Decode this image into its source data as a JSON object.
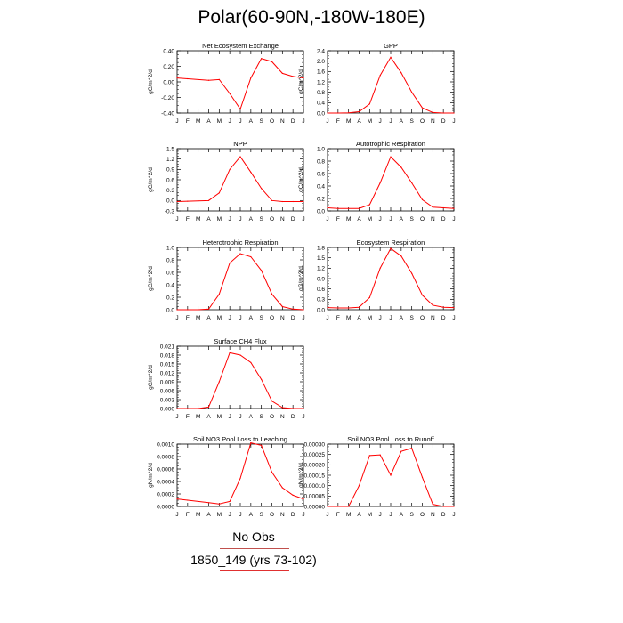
{
  "page": {
    "title": "Polar(60-90N,-180W-180E)",
    "footer_obs": "No Obs",
    "footer_run": "1850_149 (yrs 73-102)",
    "line_color": "#ff0000",
    "axis_color": "#000000",
    "obs_rule_color": "#c0504d",
    "run_rule_color": "#e03030"
  },
  "chart_data": [
    {
      "type": "line",
      "title": "Net Ecosystem Exchange",
      "ylabel": "gC/m^2/d",
      "categories": [
        "J",
        "F",
        "M",
        "A",
        "M",
        "J",
        "J",
        "A",
        "S",
        "O",
        "N",
        "D",
        "J"
      ],
      "ylim": [
        -0.4,
        0.4
      ],
      "yticks": [
        -0.4,
        -0.2,
        0.0,
        0.2,
        0.4
      ],
      "ytick_labels": [
        "-0.40",
        "-0.20",
        "0.00",
        "0.20",
        "0.40"
      ],
      "series": [
        {
          "values": [
            0.05,
            0.04,
            0.03,
            0.02,
            0.03,
            -0.15,
            -0.35,
            0.05,
            0.3,
            0.26,
            0.11,
            0.07,
            0.05
          ]
        }
      ]
    },
    {
      "type": "line",
      "title": "GPP",
      "ylabel": "gC/m^2/d",
      "categories": [
        "J",
        "F",
        "M",
        "A",
        "M",
        "J",
        "J",
        "A",
        "S",
        "O",
        "N",
        "D",
        "J"
      ],
      "ylim": [
        0,
        2.4
      ],
      "yticks": [
        0,
        0.4,
        0.8,
        1.2,
        1.6,
        2.0,
        2.4
      ],
      "ytick_labels": [
        "0.0",
        "0.4",
        "0.8",
        "1.2",
        "1.6",
        "2.0",
        "2.4"
      ],
      "series": [
        {
          "values": [
            0.0,
            0.0,
            0.01,
            0.05,
            0.35,
            1.45,
            2.15,
            1.55,
            0.8,
            0.2,
            0.02,
            0.0,
            0.0
          ]
        }
      ]
    },
    {
      "type": "line",
      "title": "NPP",
      "ylabel": "gC/m^2/d",
      "categories": [
        "J",
        "F",
        "M",
        "A",
        "M",
        "J",
        "J",
        "A",
        "S",
        "O",
        "N",
        "D",
        "J"
      ],
      "ylim": [
        -0.3,
        1.5
      ],
      "yticks": [
        -0.3,
        0.0,
        0.3,
        0.6,
        0.9,
        1.2,
        1.5
      ],
      "ytick_labels": [
        "-0.3",
        "0.0",
        "0.3",
        "0.6",
        "0.9",
        "1.2",
        "1.5"
      ],
      "series": [
        {
          "values": [
            -0.03,
            -0.02,
            -0.01,
            0.0,
            0.22,
            0.9,
            1.27,
            0.82,
            0.35,
            0.0,
            -0.03,
            -0.03,
            -0.03
          ]
        }
      ]
    },
    {
      "type": "line",
      "title": "Autotrophic Respiration",
      "ylabel": "gC/m^2/d",
      "categories": [
        "J",
        "F",
        "M",
        "A",
        "M",
        "J",
        "J",
        "A",
        "S",
        "O",
        "N",
        "D",
        "J"
      ],
      "ylim": [
        0,
        1.0
      ],
      "yticks": [
        0,
        0.2,
        0.4,
        0.6,
        0.8,
        1.0
      ],
      "ytick_labels": [
        "0.0",
        "0.2",
        "0.4",
        "0.6",
        "0.8",
        "1.0"
      ],
      "series": [
        {
          "values": [
            0.05,
            0.04,
            0.04,
            0.04,
            0.1,
            0.45,
            0.87,
            0.7,
            0.45,
            0.18,
            0.06,
            0.05,
            0.04
          ]
        }
      ]
    },
    {
      "type": "line",
      "title": "Heterotrophic Respiration",
      "ylabel": "gC/m^2/d",
      "categories": [
        "J",
        "F",
        "M",
        "A",
        "M",
        "J",
        "J",
        "A",
        "S",
        "O",
        "N",
        "D",
        "J"
      ],
      "ylim": [
        0,
        1.0
      ],
      "yticks": [
        0,
        0.2,
        0.4,
        0.6,
        0.8,
        1.0
      ],
      "ytick_labels": [
        "0.0",
        "0.2",
        "0.4",
        "0.6",
        "0.8",
        "1.0"
      ],
      "series": [
        {
          "values": [
            0.0,
            0.0,
            0.0,
            0.01,
            0.25,
            0.75,
            0.9,
            0.85,
            0.63,
            0.25,
            0.05,
            0.01,
            0.0
          ]
        }
      ]
    },
    {
      "type": "line",
      "title": "Ecosystem Respiration",
      "ylabel": "gC/m^2/d",
      "categories": [
        "J",
        "F",
        "M",
        "A",
        "M",
        "J",
        "J",
        "A",
        "S",
        "O",
        "N",
        "D",
        "J"
      ],
      "ylim": [
        0,
        1.8
      ],
      "yticks": [
        0,
        0.3,
        0.6,
        0.9,
        1.2,
        1.5,
        1.8
      ],
      "ytick_labels": [
        "0.0",
        "0.3",
        "0.6",
        "0.9",
        "1.2",
        "1.5",
        "1.8"
      ],
      "series": [
        {
          "values": [
            0.06,
            0.05,
            0.05,
            0.07,
            0.35,
            1.2,
            1.77,
            1.55,
            1.05,
            0.42,
            0.13,
            0.07,
            0.06
          ]
        }
      ]
    },
    {
      "type": "line",
      "title": "Surface CH4 Flux",
      "ylabel": "gC/m^2/d",
      "categories": [
        "J",
        "F",
        "M",
        "A",
        "M",
        "J",
        "J",
        "A",
        "S",
        "O",
        "N",
        "D",
        "J"
      ],
      "ylim": [
        0,
        0.021
      ],
      "yticks": [
        0,
        0.003,
        0.006,
        0.009,
        0.012,
        0.015,
        0.018,
        0.021
      ],
      "ytick_labels": [
        "0.000",
        "0.003",
        "0.006",
        "0.009",
        "0.012",
        "0.015",
        "0.018",
        "0.021"
      ],
      "series": [
        {
          "values": [
            0.0,
            0.0,
            0.0,
            0.0005,
            0.009,
            0.0188,
            0.018,
            0.0155,
            0.0098,
            0.0025,
            0.0003,
            0.0,
            0.0
          ]
        }
      ]
    },
    {
      "type": "line",
      "title": "Soil NO3 Pool Loss to Leaching",
      "ylabel": "gN/m^2/d",
      "categories": [
        "J",
        "F",
        "M",
        "A",
        "M",
        "J",
        "J",
        "A",
        "S",
        "O",
        "N",
        "D",
        "J"
      ],
      "ylim": [
        0,
        0.001
      ],
      "yticks": [
        0,
        0.0002,
        0.0004,
        0.0006,
        0.0008,
        0.001
      ],
      "ytick_labels": [
        "0.0000",
        "0.0002",
        "0.0004",
        "0.0006",
        "0.0008",
        "0.0010"
      ],
      "series": [
        {
          "values": [
            0.00012,
            0.0001,
            8e-05,
            6e-05,
            4e-05,
            8e-05,
            0.00045,
            0.00102,
            0.00098,
            0.00055,
            0.0003,
            0.00018,
            0.00012
          ]
        }
      ]
    },
    {
      "type": "line",
      "title": "Soil NO3 Pool Loss to Runoff",
      "ylabel": "gN/m^2/d",
      "categories": [
        "J",
        "F",
        "M",
        "A",
        "M",
        "J",
        "J",
        "A",
        "S",
        "O",
        "N",
        "D",
        "J"
      ],
      "ylim": [
        0,
        0.0003
      ],
      "yticks": [
        0,
        5e-05,
        0.0001,
        0.00015,
        0.0002,
        0.00025,
        0.0003
      ],
      "ytick_labels": [
        "0.00000",
        "0.00005",
        "0.00010",
        "0.00015",
        "0.00020",
        "0.00025",
        "0.00030"
      ],
      "series": [
        {
          "values": [
            0.0,
            0.0,
            0.0,
            0.0001,
            0.000245,
            0.000248,
            0.00015,
            0.000265,
            0.00028,
            0.00014,
            1e-05,
            0.0,
            0.0
          ]
        }
      ]
    }
  ]
}
